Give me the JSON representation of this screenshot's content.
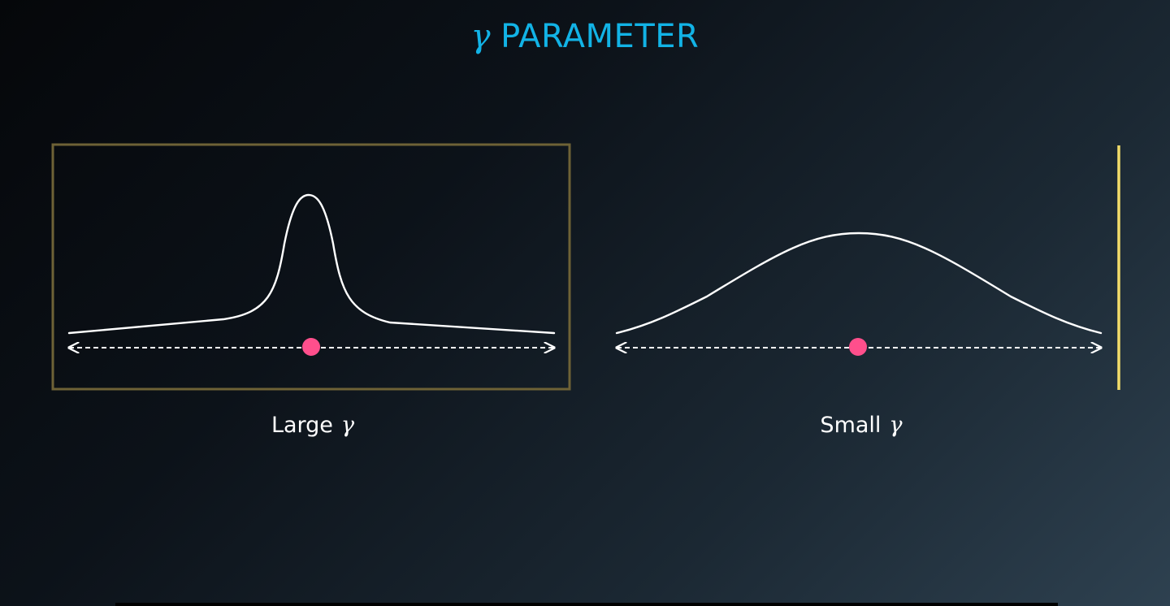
{
  "title": {
    "symbol": "γ",
    "text": "PARAMETER",
    "color": "#12b3e6"
  },
  "panels": [
    {
      "id": "large-gamma",
      "caption_text": "Large",
      "caption_symbol": "γ",
      "curve_shape": "narrow tall peak with long flat tails",
      "frame": "full rectangle",
      "frame_color": "#6e6236"
    },
    {
      "id": "small-gamma",
      "caption_text": "Small",
      "caption_symbol": "γ",
      "curve_shape": "wide low bell curve",
      "frame": "partial (right and bottom edges)",
      "frame_color": "#f2dc6a"
    }
  ],
  "colors": {
    "point": "#ff4f8c",
    "curve": "#ffffff",
    "axis": "#ffffff"
  }
}
